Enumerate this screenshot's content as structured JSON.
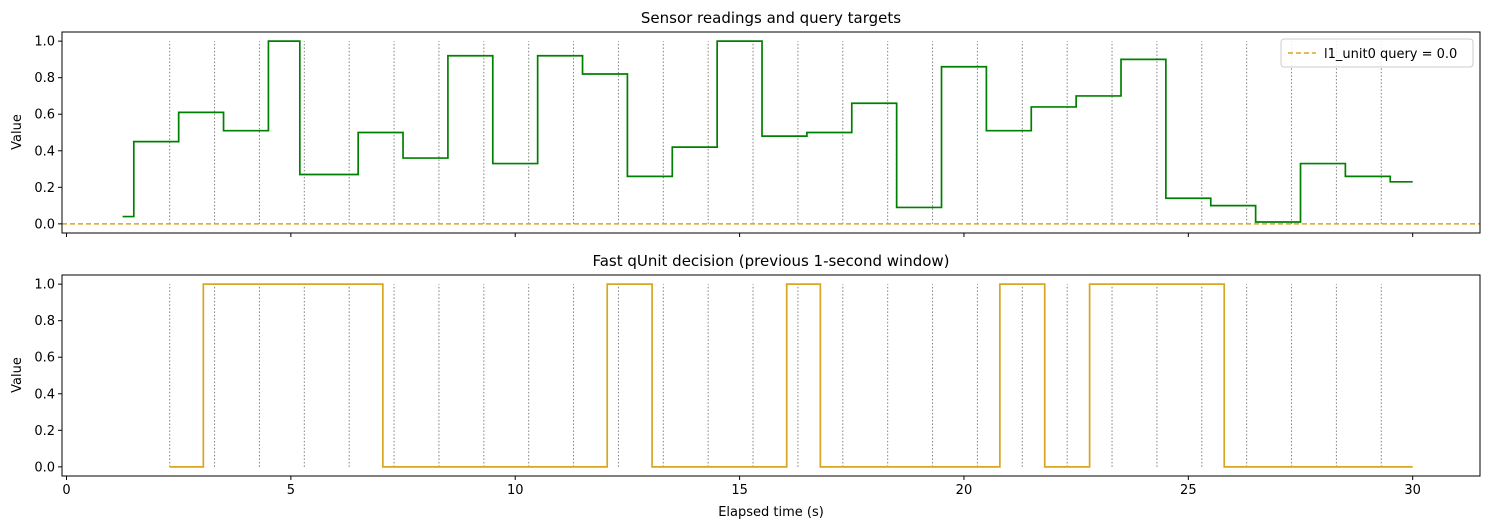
{
  "chart_data": [
    {
      "type": "line",
      "title": "Sensor readings and query targets",
      "xlabel": "",
      "ylabel": "Value",
      "xlim": [
        -0.1,
        31.5
      ],
      "ylim": [
        -0.05,
        1.05
      ],
      "xticks": [
        0,
        5,
        10,
        15,
        20,
        25,
        30
      ],
      "xtick_labels_visible": false,
      "yticks": [
        0.0,
        0.2,
        0.4,
        0.6,
        0.8,
        1.0
      ],
      "ytick_labels": [
        "0.0",
        "0.2",
        "0.4",
        "0.6",
        "0.8",
        "1.0"
      ],
      "grid": false,
      "vlines": {
        "x": [
          2.3,
          3.3,
          4.3,
          5.3,
          6.3,
          7.3,
          8.3,
          9.3,
          10.3,
          11.3,
          12.3,
          13.3,
          14.3,
          15.3,
          16.3,
          17.3,
          18.3,
          19.3,
          20.3,
          21.3,
          22.3,
          23.3,
          24.3,
          25.3,
          26.3,
          27.3,
          28.3,
          29.3
        ],
        "ymin": 0.0,
        "ymax": 1.0,
        "color": "#808080",
        "style": "dotted"
      },
      "legend": {
        "position": "top-right",
        "entries": [
          "l1_unit0 query = 0.0"
        ]
      },
      "series": [
        {
          "name": "",
          "style": "step",
          "color": "#008000",
          "x": [
            1.25,
            1.5,
            2.5,
            3.5,
            4.5,
            5.2,
            6.5,
            7.5,
            8.5,
            9.5,
            10.5,
            11.5,
            12.5,
            13.5,
            14.5,
            15.5,
            16.5,
            17.5,
            18.5,
            19.5,
            20.5,
            21.5,
            22.5,
            23.5,
            24.5,
            25.5,
            26.5,
            27.5,
            28.5,
            29.5,
            30.0
          ],
          "y": [
            0.04,
            0.45,
            0.61,
            0.51,
            1.0,
            0.27,
            0.5,
            0.36,
            0.92,
            0.33,
            0.92,
            0.82,
            0.26,
            0.42,
            1.0,
            0.48,
            0.5,
            0.66,
            0.09,
            0.86,
            0.51,
            0.64,
            0.7,
            0.9,
            0.14,
            0.1,
            0.01,
            0.33,
            0.26,
            0.23,
            0.23
          ]
        },
        {
          "name": "l1_unit0 query = 0.0",
          "style": "hline-dashed",
          "color": "#DAA520",
          "y": [
            0.0
          ]
        }
      ]
    },
    {
      "type": "line",
      "title": "Fast qUnit decision (previous 1-second window)",
      "xlabel": "Elapsed time (s)",
      "ylabel": "Value",
      "xlim": [
        -0.1,
        31.5
      ],
      "ylim": [
        -0.05,
        1.05
      ],
      "xticks": [
        0,
        5,
        10,
        15,
        20,
        25,
        30
      ],
      "xtick_labels": [
        "0",
        "5",
        "10",
        "15",
        "20",
        "25",
        "30"
      ],
      "yticks": [
        0.0,
        0.2,
        0.4,
        0.6,
        0.8,
        1.0
      ],
      "ytick_labels": [
        "0.0",
        "0.2",
        "0.4",
        "0.6",
        "0.8",
        "1.0"
      ],
      "grid": false,
      "vlines": {
        "x": [
          2.3,
          3.3,
          4.3,
          5.3,
          6.3,
          7.3,
          8.3,
          9.3,
          10.3,
          11.3,
          12.3,
          13.3,
          14.3,
          15.3,
          16.3,
          17.3,
          18.3,
          19.3,
          20.3,
          21.3,
          22.3,
          23.3,
          24.3,
          25.3,
          26.3,
          27.3,
          28.3,
          29.3
        ],
        "ymin": 0.0,
        "ymax": 1.0,
        "color": "#808080",
        "style": "dotted"
      },
      "series": [
        {
          "name": "",
          "style": "step",
          "color": "#DAA520",
          "x": [
            2.3,
            3.05,
            7.05,
            12.05,
            13.05,
            16.05,
            16.8,
            20.8,
            21.8,
            22.8,
            25.8,
            30.0
          ],
          "y": [
            0,
            1,
            0,
            1,
            0,
            1,
            0,
            1,
            0,
            1,
            0,
            0
          ]
        }
      ]
    }
  ]
}
